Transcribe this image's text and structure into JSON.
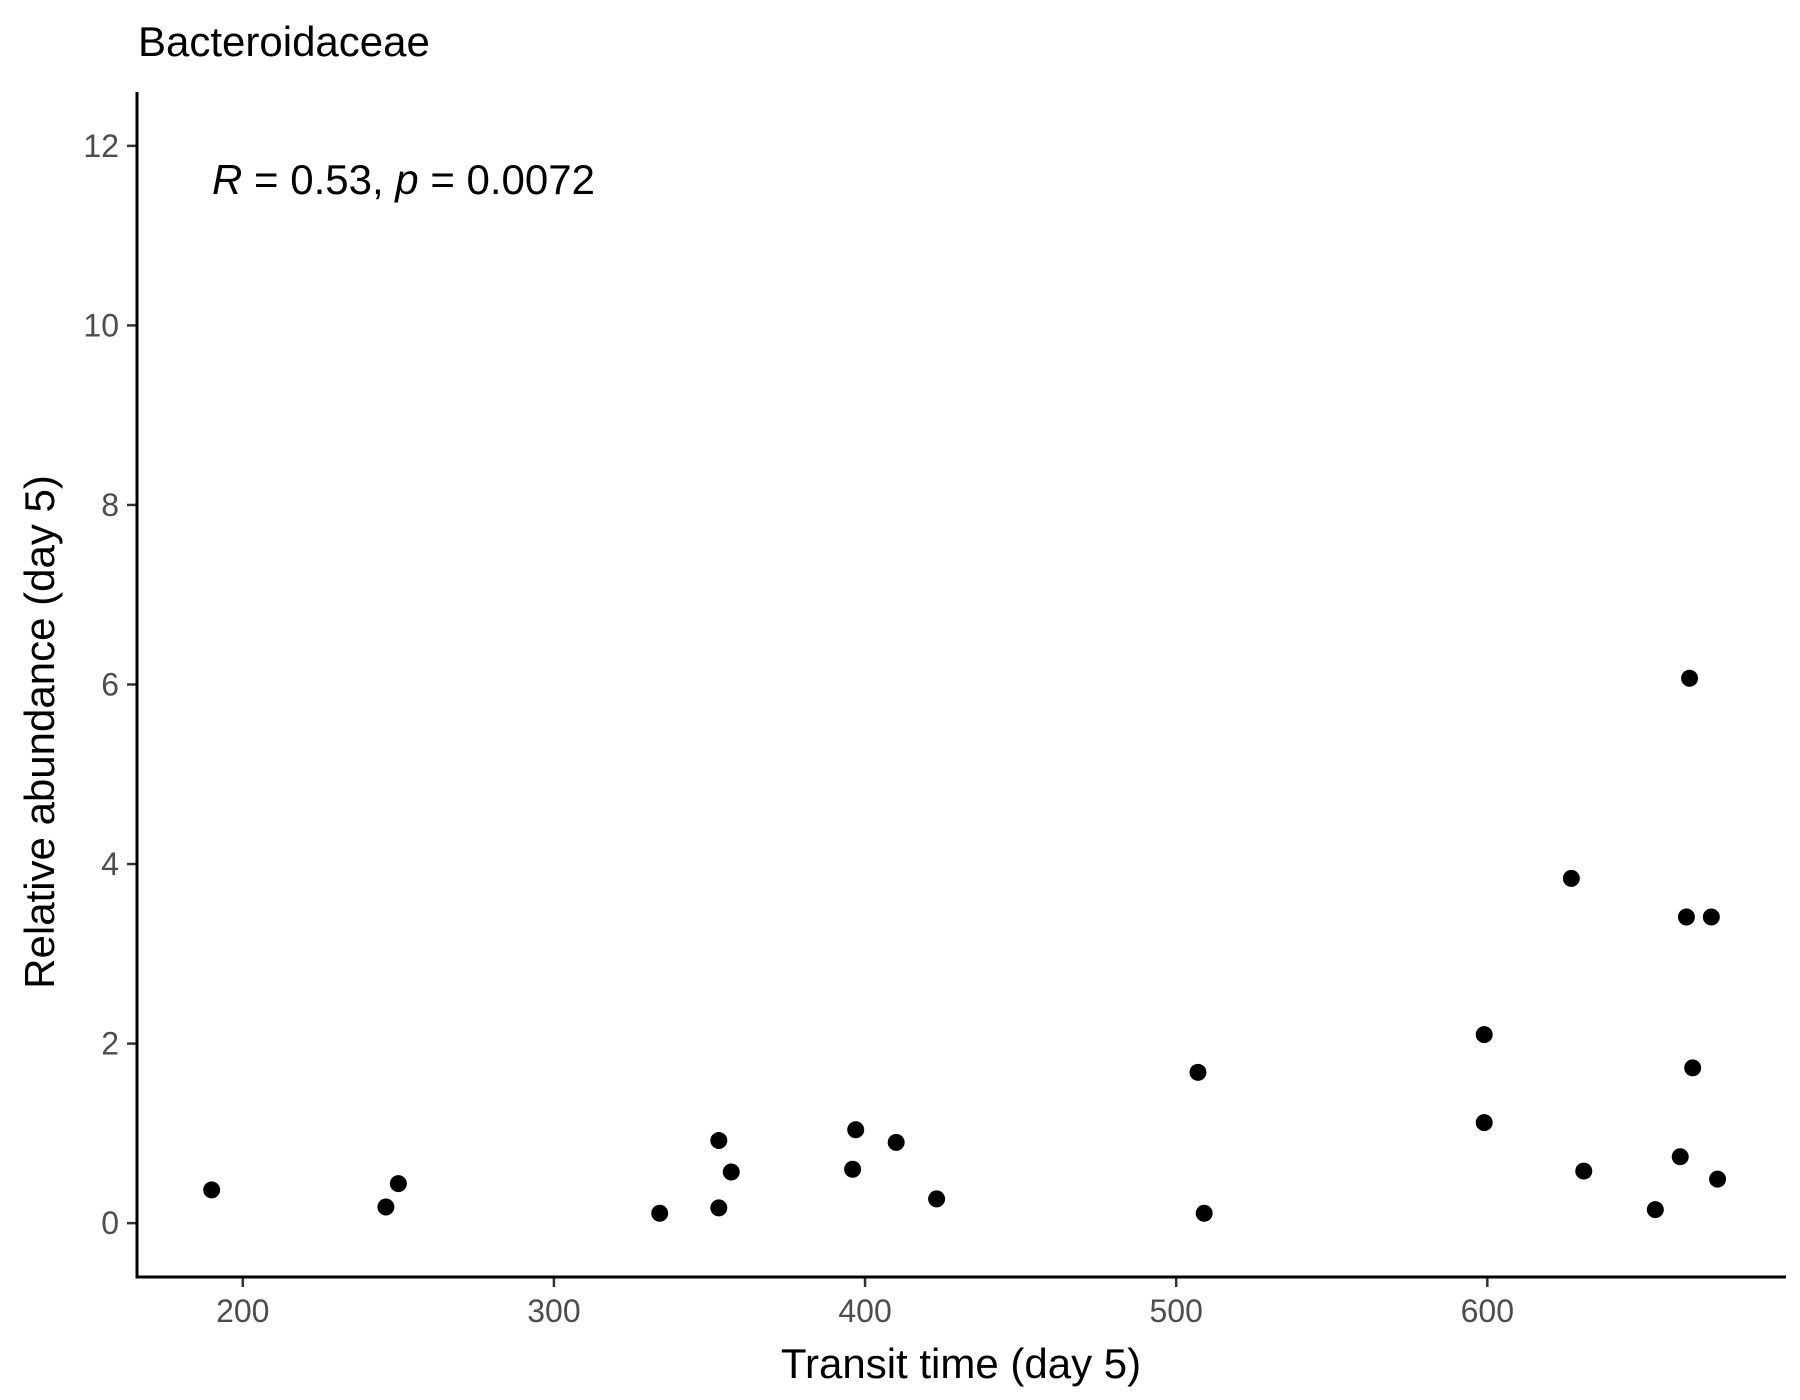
{
  "chart_data": {
    "type": "scatter",
    "title": "Bacteroidaceae",
    "xlabel": "Transit time (day 5)",
    "ylabel": "Relative abundance (day 5)",
    "xlim": [
      166,
      696
    ],
    "ylim": [
      -0.6,
      12.6
    ],
    "xticks": [
      200,
      300,
      400,
      500,
      600
    ],
    "yticks": [
      0,
      2,
      4,
      6,
      8,
      10,
      12
    ],
    "grid": false,
    "annotation": {
      "r_symbol": "R",
      "r_text": " = 0.53, ",
      "p_symbol": "p",
      "p_text": " = 0.0072"
    },
    "points": [
      {
        "x": 190,
        "y": 0.37
      },
      {
        "x": 246,
        "y": 0.18
      },
      {
        "x": 250,
        "y": 0.44
      },
      {
        "x": 334,
        "y": 0.11
      },
      {
        "x": 353,
        "y": 0.92
      },
      {
        "x": 353,
        "y": 0.17
      },
      {
        "x": 357,
        "y": 0.57
      },
      {
        "x": 396,
        "y": 0.6
      },
      {
        "x": 397,
        "y": 1.04
      },
      {
        "x": 410,
        "y": 0.9
      },
      {
        "x": 423,
        "y": 0.27
      },
      {
        "x": 507,
        "y": 1.68
      },
      {
        "x": 509,
        "y": 0.11
      },
      {
        "x": 599,
        "y": 2.1
      },
      {
        "x": 599,
        "y": 1.12
      },
      {
        "x": 627,
        "y": 3.84
      },
      {
        "x": 631,
        "y": 0.58
      },
      {
        "x": 654,
        "y": 0.15
      },
      {
        "x": 662,
        "y": 0.74
      },
      {
        "x": 664,
        "y": 3.41
      },
      {
        "x": 665,
        "y": 6.07
      },
      {
        "x": 666,
        "y": 1.73
      },
      {
        "x": 672,
        "y": 3.41
      },
      {
        "x": 674,
        "y": 0.49
      }
    ]
  }
}
